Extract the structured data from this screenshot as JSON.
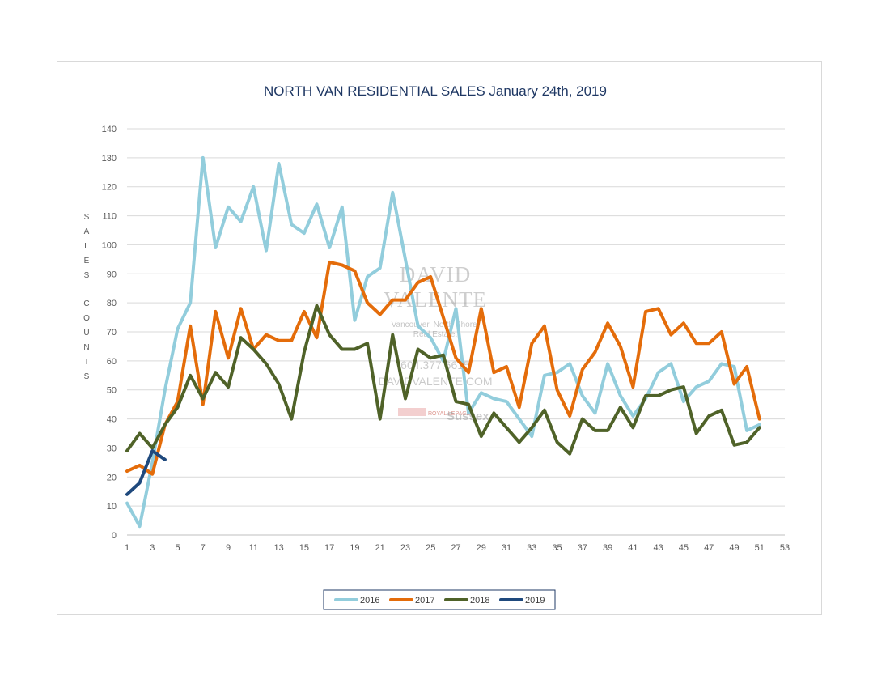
{
  "chart_data": {
    "type": "line",
    "title": "NORTH VAN RESIDENTIAL SALES January 24th, 2019",
    "xlabel": "",
    "ylabel": "SALES COUNTS",
    "ylabel_letters": [
      "S",
      "A",
      "L",
      "E",
      "S",
      "C",
      "O",
      "U",
      "N",
      "T",
      "S"
    ],
    "xlim": [
      1,
      53
    ],
    "ylim": [
      0,
      140
    ],
    "y_ticks": [
      0,
      10,
      20,
      30,
      40,
      50,
      60,
      70,
      80,
      90,
      100,
      110,
      120,
      130,
      140
    ],
    "x_ticks": [
      1,
      3,
      5,
      7,
      9,
      11,
      13,
      15,
      17,
      19,
      21,
      23,
      25,
      27,
      29,
      31,
      33,
      35,
      37,
      39,
      41,
      43,
      45,
      47,
      49,
      51,
      53
    ],
    "grid": "horizontal",
    "legend_position": "bottom",
    "series": [
      {
        "name": "2016",
        "color": "#92cddc",
        "values": [
          11,
          3,
          25,
          50,
          71,
          80,
          130,
          99,
          113,
          108,
          120,
          98,
          128,
          107,
          104,
          114,
          99,
          113,
          74,
          89,
          92,
          118,
          95,
          72,
          68,
          60,
          78,
          42,
          49,
          47,
          46,
          40,
          34,
          55,
          56,
          59,
          48,
          42,
          59,
          48,
          41,
          47,
          56,
          59,
          46,
          51,
          53,
          59,
          58,
          36,
          38
        ]
      },
      {
        "name": "2017",
        "color": "#e46c0a",
        "values": [
          22,
          24,
          21,
          38,
          46,
          72,
          45,
          77,
          61,
          78,
          64,
          69,
          67,
          67,
          77,
          68,
          94,
          93,
          91,
          80,
          76,
          81,
          81,
          87,
          89,
          75,
          61,
          56,
          78,
          56,
          58,
          44,
          66,
          72,
          50,
          41,
          57,
          63,
          73,
          65,
          51,
          77,
          78,
          69,
          73,
          66,
          66,
          70,
          52,
          58,
          40
        ]
      },
      {
        "name": "2018",
        "color": "#4f6228",
        "values": [
          29,
          35,
          30,
          38,
          44,
          55,
          47,
          56,
          51,
          68,
          64,
          59,
          52,
          40,
          63,
          79,
          69,
          64,
          64,
          66,
          40,
          69,
          47,
          64,
          61,
          62,
          46,
          45,
          34,
          42,
          37,
          32,
          37,
          43,
          32,
          28,
          40,
          36,
          36,
          44,
          37,
          48,
          48,
          50,
          51,
          35,
          41,
          43,
          31,
          32,
          37
        ]
      },
      {
        "name": "2019",
        "color": "#1f497d",
        "values": [
          14,
          18,
          29,
          26
        ]
      }
    ]
  },
  "watermark": {
    "line1": "DAVID",
    "line2": "VALENTE",
    "tagline1": "Vancouver, North Shore,",
    "tagline2": "Real Estate.",
    "phone": "604.377.6615",
    "website": "DAVIDVALENTE.COM",
    "brokerage": "ROYAL LEPAGE",
    "brand": "Sussex"
  }
}
